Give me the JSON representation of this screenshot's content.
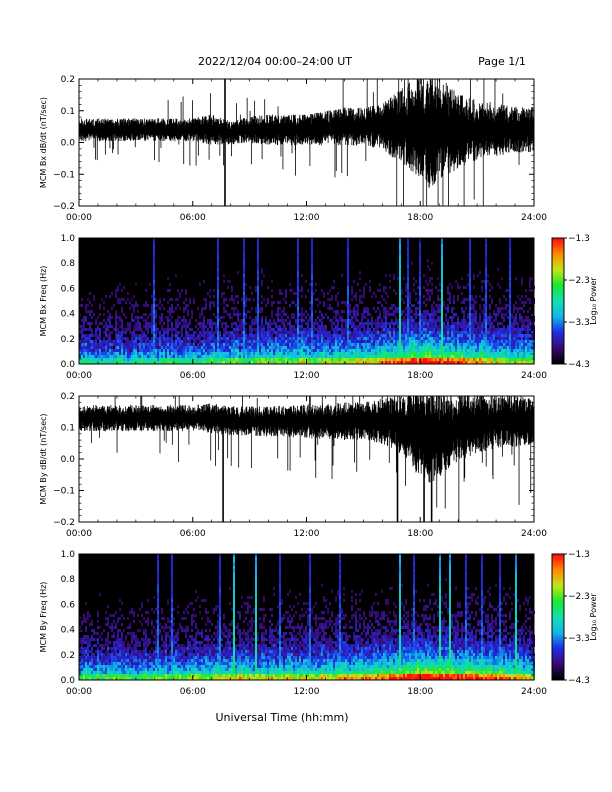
{
  "header": {
    "title": "2022/12/04  00:00–24:00 UT",
    "page": "Page 1/1"
  },
  "colors": {
    "trace": "#000000",
    "spectrogram_background": "#000000",
    "colormap": [
      "#000000",
      "#3a0a78",
      "#1d2ee8",
      "#10b8e8",
      "#10e0b0",
      "#18e830",
      "#c0e818",
      "#ff8c00",
      "#ff1010"
    ]
  },
  "xlabel": "Universal Time (hh:mm)",
  "chart_data": [
    {
      "type": "line",
      "ylabel": "MCM Bx dB/dt (nT/sec)",
      "ylim": [
        -0.2,
        0.2
      ],
      "yticks": [
        "0.2",
        "0.1",
        "0.0",
        "−0.1",
        "−0.2"
      ],
      "xticks": [
        "00:00",
        "06:00",
        "12:00",
        "18:00",
        "24:00"
      ],
      "xlim_hours": [
        0,
        24
      ],
      "series": [
        {
          "x_hours": [
            0,
            2,
            4,
            6,
            7,
            8,
            9,
            10,
            12,
            14,
            15,
            16,
            17,
            17.5,
            18,
            18.5,
            19,
            19.5,
            20,
            21,
            22,
            23,
            24
          ],
          "mean": [
            0.04,
            0.04,
            0.04,
            0.04,
            0.04,
            0.03,
            0.04,
            0.04,
            0.04,
            0.05,
            0.05,
            0.05,
            0.05,
            0.05,
            0.04,
            0.03,
            0.04,
            0.04,
            0.04,
            0.04,
            0.04,
            0.04,
            0.04
          ],
          "spread": [
            0.03,
            0.03,
            0.03,
            0.03,
            0.04,
            0.03,
            0.035,
            0.04,
            0.04,
            0.05,
            0.05,
            0.06,
            0.1,
            0.12,
            0.14,
            0.15,
            0.14,
            0.12,
            0.1,
            0.08,
            0.07,
            0.06,
            0.06
          ]
        }
      ],
      "spikes": [
        {
          "x": 7.7,
          "y1": -0.2,
          "y2": 0.2
        }
      ]
    },
    {
      "type": "heatmap",
      "ylabel": "MCM Bx Freq (Hz)",
      "ylim": [
        0,
        1.0
      ],
      "yticks": [
        "1.0",
        "0.8",
        "0.6",
        "0.4",
        "0.2",
        "0.0"
      ],
      "xticks": [
        "00:00",
        "06:00",
        "12:00",
        "18:00",
        "24:00"
      ],
      "xlim_hours": [
        0,
        24
      ],
      "colorbar": {
        "label": "Log₁₀ Power",
        "range": [
          -4.3,
          -1.3
        ],
        "ticks": [
          "−1.3",
          "−2.3",
          "−3.3",
          "−4.3"
        ]
      },
      "activity_hours": [
        0,
        3,
        6,
        9,
        12,
        15,
        18,
        20,
        22,
        24
      ],
      "activity_level": [
        0.35,
        0.35,
        0.4,
        0.45,
        0.5,
        0.55,
        0.75,
        0.7,
        0.55,
        0.5
      ],
      "bright_lines_hours": [
        16.8,
        19.0
      ],
      "secondary_lines_hours": [
        3.9,
        7.3,
        8.6,
        9.4,
        11.5,
        12.2,
        14.1,
        17.3,
        17.9,
        20.5,
        21.4,
        22.6
      ]
    },
    {
      "type": "line",
      "ylabel": "MCM By dB/dt (nT/sec)",
      "ylim": [
        -0.2,
        0.2
      ],
      "yticks": [
        "0.2",
        "0.1",
        "0.0",
        "−0.1",
        "−0.2"
      ],
      "xticks": [
        "00:00",
        "06:00",
        "12:00",
        "18:00",
        "24:00"
      ],
      "xlim_hours": [
        0,
        24
      ],
      "series": [
        {
          "x_hours": [
            0,
            2,
            4,
            6,
            7,
            8,
            9,
            10,
            12,
            14,
            15,
            16,
            17,
            17.5,
            18,
            18.5,
            19,
            19.5,
            20,
            21,
            22,
            23,
            24
          ],
          "mean": [
            0.13,
            0.13,
            0.13,
            0.13,
            0.13,
            0.12,
            0.12,
            0.12,
            0.12,
            0.12,
            0.12,
            0.12,
            0.11,
            0.1,
            0.08,
            0.07,
            0.08,
            0.09,
            0.1,
            0.11,
            0.12,
            0.12,
            0.12
          ],
          "spread": [
            0.035,
            0.035,
            0.035,
            0.035,
            0.04,
            0.04,
            0.04,
            0.04,
            0.045,
            0.05,
            0.05,
            0.06,
            0.08,
            0.1,
            0.12,
            0.13,
            0.12,
            0.1,
            0.09,
            0.08,
            0.07,
            0.07,
            0.06
          ]
        }
      ],
      "spikes": [
        {
          "x": 7.6,
          "y1": -0.2,
          "y2": 0.1
        },
        {
          "x": 16.8,
          "y1": -0.2,
          "y2": 0.12
        },
        {
          "x": 18.2,
          "y1": -0.2,
          "y2": 0.1
        },
        {
          "x": 18.6,
          "y1": -0.2,
          "y2": 0.1
        }
      ]
    },
    {
      "type": "heatmap",
      "ylabel": "MCM By Freq (Hz)",
      "ylim": [
        0,
        1.0
      ],
      "yticks": [
        "1.0",
        "0.8",
        "0.6",
        "0.4",
        "0.2",
        "0.0"
      ],
      "xticks": [
        "00:00",
        "06:00",
        "12:00",
        "18:00",
        "24:00"
      ],
      "xlim_hours": [
        0,
        24
      ],
      "colorbar": {
        "label": "Log₁₀ Power",
        "range": [
          -4.3,
          -1.3
        ],
        "ticks": [
          "−1.3",
          "−2.3",
          "−3.3",
          "−4.3"
        ]
      },
      "activity_hours": [
        0,
        3,
        6,
        9,
        12,
        15,
        18,
        20,
        22,
        24
      ],
      "activity_level": [
        0.45,
        0.45,
        0.5,
        0.55,
        0.55,
        0.6,
        0.8,
        0.75,
        0.65,
        0.55
      ],
      "bright_lines_hours": [
        8.1,
        9.3,
        16.8,
        18.9,
        19.5,
        22.9
      ],
      "secondary_lines_hours": [
        4.1,
        4.8,
        7.4,
        10.5,
        12.1,
        13.7,
        17.6,
        20.3,
        21.2,
        22.1
      ]
    }
  ]
}
